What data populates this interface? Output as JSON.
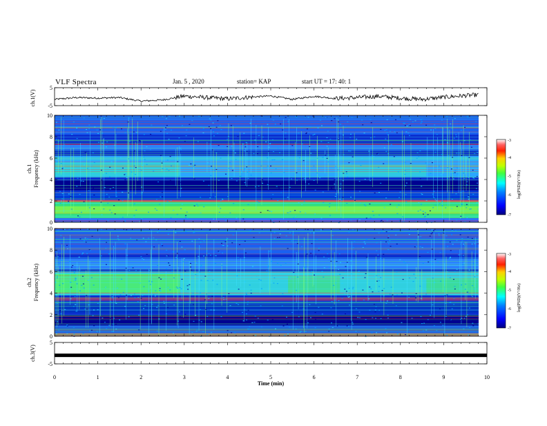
{
  "header": {
    "title": "VLF Spectra",
    "date": "Jan. 5 , 2020",
    "station": "station= KAP",
    "start": "start UT = 17: 40: 1"
  },
  "colors": {
    "spectro_low": "#000096",
    "spectro_mid": "#00c8ff",
    "spectro_high": "#32ff32",
    "trace": "#000000",
    "colormap": [
      "#000080",
      "#0000ff",
      "#0080ff",
      "#00ffff",
      "#40ff40",
      "#c0ff00",
      "#ffd000",
      "#ff2000",
      "#ff0000",
      "#ffffff"
    ]
  },
  "chart_data": [
    {
      "type": "line",
      "panel": "ch1-waveform",
      "ylabel": "ch.1(V)",
      "ylim": [
        -5,
        5
      ],
      "yticks": [
        "5",
        "-5"
      ],
      "x": [
        0,
        0.5,
        1,
        1.5,
        2,
        2.5,
        3,
        3.5,
        4,
        4.5,
        5,
        5.5,
        6,
        6.5,
        7,
        7.5,
        8,
        8.5,
        9,
        9.5,
        9.8
      ],
      "y": [
        -1.5,
        -0.5,
        -0.8,
        -0.5,
        -2.5,
        -1.8,
        0.3,
        -0.5,
        -1.2,
        -0.3,
        0.4,
        -1.5,
        0.2,
        -1.0,
        -0.5,
        0.2,
        -0.8,
        -1.5,
        -0.3,
        0.6,
        1.0
      ]
    },
    {
      "type": "heatmap",
      "panel": "ch1-spectrogram",
      "ylabel_line1": "ch.1",
      "ylabel_line2": "Frequency (kHz)",
      "ylim": [
        0,
        10
      ],
      "yticks": [
        "0",
        "2",
        "4",
        "6",
        "8",
        "10"
      ],
      "colorbar": {
        "label": "log(PSD)(V²/Hz)",
        "range": [
          -7,
          -3
        ],
        "ticks": [
          "-3",
          "-4",
          "-5",
          "-6",
          "-7"
        ]
      }
    },
    {
      "type": "heatmap",
      "panel": "ch2-spectrogram",
      "ylabel_line1": "ch.2",
      "ylabel_line2": "Frequency (kHz)",
      "ylim": [
        0,
        10
      ],
      "yticks": [
        "0",
        "2",
        "4",
        "6",
        "8",
        "10"
      ],
      "colorbar": {
        "label": "log(PSD)(V²/Hz)",
        "range": [
          -7,
          -3
        ],
        "ticks": [
          "-3",
          "-4",
          "-5",
          "-6",
          "-7"
        ]
      }
    },
    {
      "type": "line",
      "panel": "ch3-waveform",
      "ylabel": "ch.3(V)",
      "ylim": [
        -5,
        5
      ],
      "yticks": [
        "5",
        "-5"
      ],
      "x": [
        0,
        10
      ],
      "y": [
        -1,
        -1
      ]
    }
  ],
  "xaxis": {
    "label": "Time (min)",
    "ticks": [
      "0",
      "1",
      "2",
      "3",
      "4",
      "5",
      "6",
      "7",
      "8",
      "9",
      "10"
    ],
    "xlim": [
      0,
      10
    ]
  }
}
